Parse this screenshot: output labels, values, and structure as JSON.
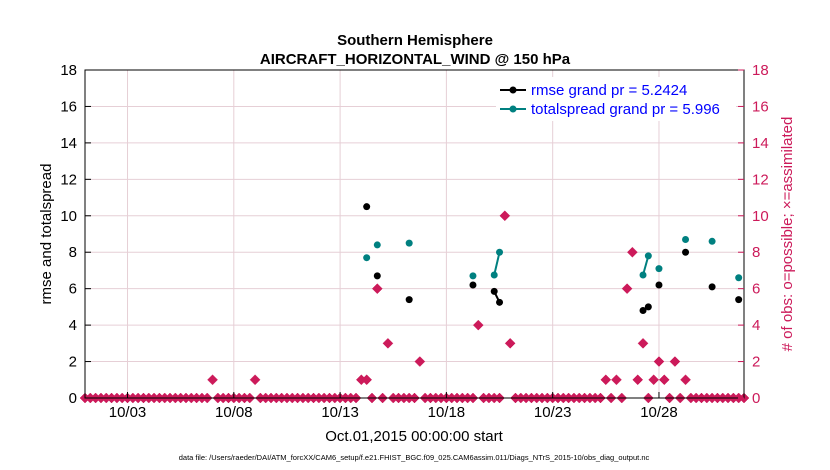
{
  "chart_data": {
    "type": "line",
    "title_line1": "Southern Hemisphere",
    "title_line2": "AIRCRAFT_HORIZONTAL_WIND @ 150 hPa",
    "xlabel": "Oct.01,2015 00:00:00 start",
    "ylabel": "rmse and totalspread",
    "y2label": "# of obs: o=possible; ×=assimilated",
    "footnote": "data file: /Users/raeder/DAI/ATM_forcXX/CAM6_setup/f.e21.FHIST_BGC.f09_025.CAM6assim.011/Diags_NTrS_2015-10/obs_diag_output.nc",
    "xlim": [
      0,
      31
    ],
    "ylim": [
      0,
      18
    ],
    "y2lim": [
      0,
      18
    ],
    "yticks": [
      "0",
      "2",
      "4",
      "6",
      "8",
      "10",
      "12",
      "14",
      "16",
      "18"
    ],
    "y2ticks": [
      "0",
      "2",
      "4",
      "6",
      "8",
      "10",
      "12",
      "14",
      "16",
      "18"
    ],
    "xticks": [
      {
        "x": 2,
        "label": "10/03"
      },
      {
        "x": 7,
        "label": "10/08"
      },
      {
        "x": 12,
        "label": "10/13"
      },
      {
        "x": 17,
        "label": "10/18"
      },
      {
        "x": 22,
        "label": "10/23"
      },
      {
        "x": 27,
        "label": "10/28"
      }
    ],
    "colors": {
      "rmse": "#000000",
      "spread": "#008080",
      "obs": "#cc1a5a",
      "legend_text": "#0000ff",
      "grid": "#e6cfd6"
    },
    "series": [
      {
        "name": "rmse grand pr = 5.2424",
        "key": "rmse",
        "points": [
          [
            13.25,
            10.5
          ],
          [
            13.75,
            6.7
          ],
          [
            15.25,
            5.4
          ],
          [
            18.25,
            6.2
          ],
          [
            19.25,
            5.85
          ],
          [
            19.5,
            5.25
          ],
          [
            26.25,
            4.8
          ],
          [
            26.5,
            5.0
          ],
          [
            27.0,
            6.2
          ],
          [
            28.25,
            8.0
          ],
          [
            29.5,
            6.1
          ],
          [
            30.75,
            5.4
          ]
        ],
        "segments": [
          [
            [
              19.25,
              5.85
            ],
            [
              19.5,
              5.25
            ]
          ],
          [
            [
              26.25,
              4.8
            ],
            [
              26.5,
              5.0
            ]
          ]
        ]
      },
      {
        "name": "totalspread grand pr = 5.996",
        "key": "spread",
        "points": [
          [
            13.25,
            7.7
          ],
          [
            13.75,
            8.4
          ],
          [
            15.25,
            8.5
          ],
          [
            18.25,
            6.7
          ],
          [
            19.25,
            6.75
          ],
          [
            19.5,
            8.0
          ],
          [
            26.25,
            6.75
          ],
          [
            26.5,
            7.8
          ],
          [
            27.0,
            7.1
          ],
          [
            28.25,
            8.7
          ],
          [
            29.5,
            8.6
          ],
          [
            30.75,
            6.6
          ]
        ],
        "segments": [
          [
            [
              19.25,
              6.75
            ],
            [
              19.5,
              8.0
            ]
          ],
          [
            [
              26.25,
              6.75
            ],
            [
              26.5,
              7.8
            ]
          ]
        ]
      }
    ],
    "obs_counts": {
      "x": [
        0.0,
        0.25,
        0.5,
        0.75,
        1.0,
        1.25,
        1.5,
        1.75,
        2.0,
        2.25,
        2.5,
        2.75,
        3.0,
        3.25,
        3.5,
        3.75,
        4.0,
        4.25,
        4.5,
        4.75,
        5.0,
        5.25,
        5.5,
        5.75,
        6.0,
        6.25,
        6.5,
        6.75,
        7.0,
        7.25,
        7.5,
        7.75,
        8.0,
        8.25,
        8.5,
        8.75,
        9.0,
        9.25,
        9.5,
        9.75,
        10.0,
        10.25,
        10.5,
        10.75,
        11.0,
        11.25,
        11.5,
        11.75,
        12.0,
        12.25,
        12.5,
        12.75,
        13.0,
        13.25,
        13.5,
        13.75,
        14.0,
        14.25,
        14.5,
        14.75,
        15.0,
        15.25,
        15.5,
        15.75,
        16.0,
        16.25,
        16.5,
        16.75,
        17.0,
        17.25,
        17.5,
        17.75,
        18.0,
        18.25,
        18.5,
        18.75,
        19.0,
        19.25,
        19.5,
        19.75,
        20.0,
        20.25,
        20.5,
        20.75,
        21.0,
        21.25,
        21.5,
        21.75,
        22.0,
        22.25,
        22.5,
        22.75,
        23.0,
        23.25,
        23.5,
        23.75,
        24.0,
        24.25,
        24.5,
        24.75,
        25.0,
        25.25,
        25.5,
        25.75,
        26.0,
        26.25,
        26.5,
        26.75,
        27.0,
        27.25,
        27.5,
        27.75,
        28.0,
        28.25,
        28.5,
        28.75,
        29.0,
        29.25,
        29.5,
        29.75,
        30.0,
        30.25,
        30.5,
        30.75,
        31.0
      ],
      "values": [
        0,
        0,
        0,
        0,
        0,
        0,
        0,
        0,
        0,
        0,
        0,
        0,
        0,
        0,
        0,
        0,
        0,
        0,
        0,
        0,
        0,
        0,
        0,
        0,
        1,
        0,
        0,
        0,
        0,
        0,
        0,
        0,
        1,
        0,
        0,
        0,
        0,
        0,
        0,
        0,
        0,
        0,
        0,
        0,
        0,
        0,
        0,
        0,
        0,
        0,
        0,
        0,
        1,
        1,
        0,
        6,
        0,
        3,
        0,
        0,
        0,
        0,
        0,
        2,
        0,
        0,
        0,
        0,
        0,
        0,
        0,
        0,
        0,
        0,
        4,
        0,
        0,
        0,
        0,
        10,
        3,
        0,
        0,
        0,
        0,
        0,
        0,
        0,
        0,
        0,
        0,
        0,
        0,
        0,
        0,
        0,
        0,
        0,
        1,
        0,
        1,
        0,
        6,
        8,
        1,
        3,
        0,
        1,
        2,
        1,
        0,
        2,
        0,
        1,
        0,
        0,
        0,
        0,
        0,
        0,
        0,
        0,
        0,
        0,
        0
      ]
    }
  }
}
